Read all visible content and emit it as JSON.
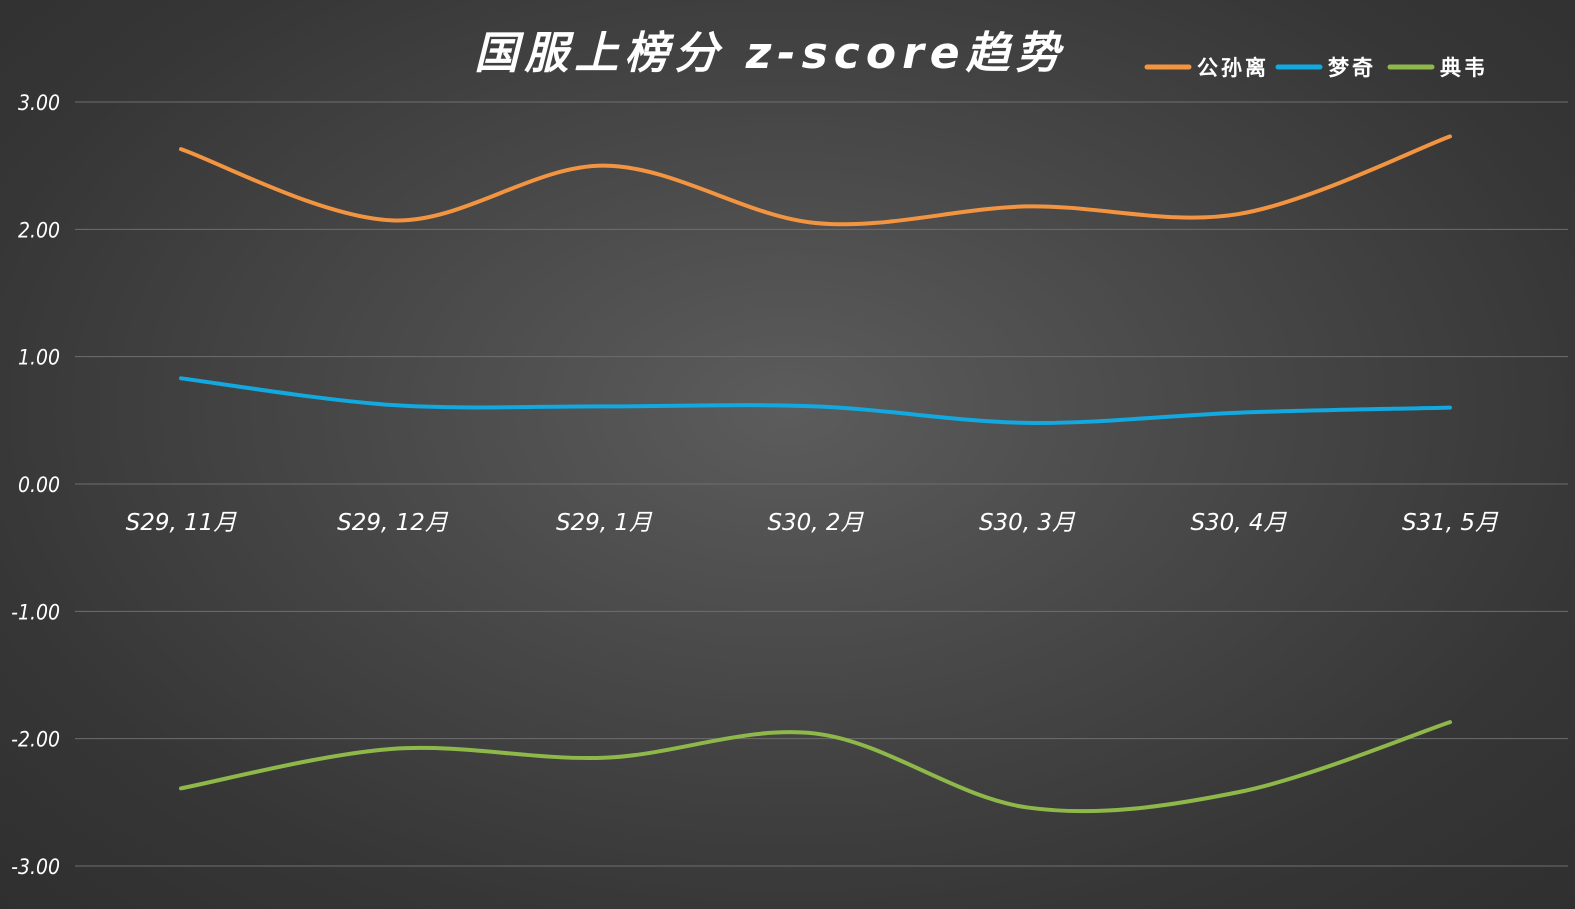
{
  "chart_data": {
    "type": "line",
    "title": "国服上榜分 z-score趋势",
    "categories": [
      "S29, 11月",
      "S29, 12月",
      "S29, 1月",
      "S30, 2月",
      "S30, 3月",
      "S30, 4月",
      "S31, 5月"
    ],
    "series": [
      {
        "name": "公孙离",
        "color": "#f39540",
        "values": [
          2.63,
          2.07,
          2.5,
          2.05,
          2.18,
          2.12,
          2.73
        ]
      },
      {
        "name": "梦奇",
        "color": "#12a8e0",
        "values": [
          0.83,
          0.62,
          0.61,
          0.61,
          0.48,
          0.56,
          0.6
        ]
      },
      {
        "name": "典韦",
        "color": "#8fb84a",
        "values": [
          -2.39,
          -2.08,
          -2.15,
          -1.96,
          -2.54,
          -2.42,
          -1.87
        ]
      }
    ],
    "y_ticks": [
      "3.00",
      "2.00",
      "1.00",
      "0.00",
      "-1.00",
      "-2.00",
      "-3.00"
    ],
    "ylim": [
      -3,
      3
    ],
    "grid": true,
    "legend_position": "top-right",
    "smooth": true,
    "xlabel": "",
    "ylabel": ""
  }
}
